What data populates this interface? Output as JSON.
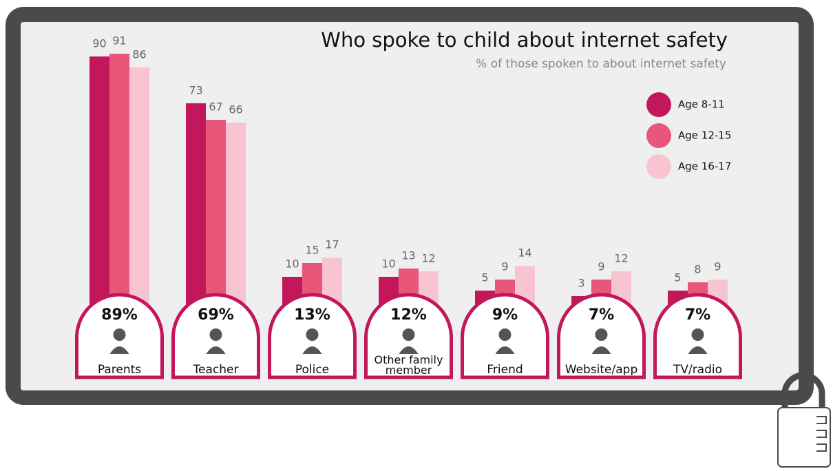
{
  "chart_data": {
    "type": "bar",
    "title": "Who spoke to child about internet safety",
    "subtitle": "% of those spoken to about internet safety",
    "categories": [
      "Parents",
      "Teacher",
      "Police",
      "Other family member",
      "Friend",
      "Website/app",
      "TV/radio"
    ],
    "series": [
      {
        "name": "Age 8-11",
        "color": "#c2185b",
        "values": [
          90,
          73,
          10,
          10,
          5,
          3,
          5
        ]
      },
      {
        "name": "Age 12-15",
        "color": "#e8567a",
        "values": [
          91,
          67,
          15,
          13,
          9,
          9,
          8
        ]
      },
      {
        "name": "Age 16-17",
        "color": "#f9c4d2",
        "values": [
          86,
          66,
          17,
          12,
          14,
          12,
          9
        ]
      }
    ],
    "totals": {
      "values": [
        89,
        69,
        13,
        12,
        9,
        7,
        7
      ],
      "value_labels": [
        "89%",
        "69%",
        "13%",
        "12%",
        "9%",
        "7%",
        "7%"
      ]
    }
  }
}
